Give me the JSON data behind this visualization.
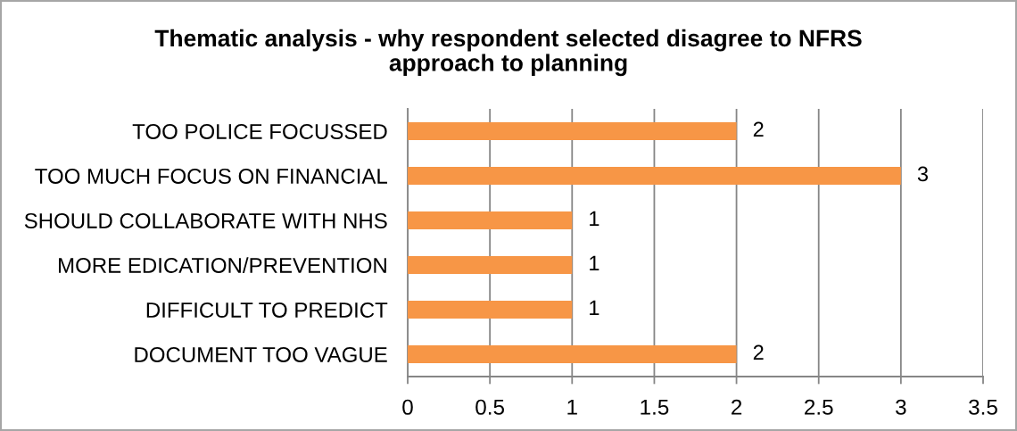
{
  "chart_data": {
    "type": "bar",
    "orientation": "horizontal",
    "title": "Thematic analysis - why respondent selected disagree to NFRS\napproach to planning",
    "categories": [
      "TOO POLICE FOCUSSED",
      "TOO MUCH FOCUS ON FINANCIAL",
      "SHOULD COLLABORATE WITH NHS",
      "MORE EDICATION/PREVENTION",
      "DIFFICULT TO PREDICT",
      "DOCUMENT TOO VAGUE"
    ],
    "values": [
      2,
      3,
      1,
      1,
      1,
      2
    ],
    "color": "#f79646",
    "xlim": [
      0,
      3.5
    ],
    "xticks": [
      0,
      0.5,
      1,
      1.5,
      2,
      2.5,
      3,
      3.5
    ],
    "grid": "x",
    "data_labels": true
  }
}
